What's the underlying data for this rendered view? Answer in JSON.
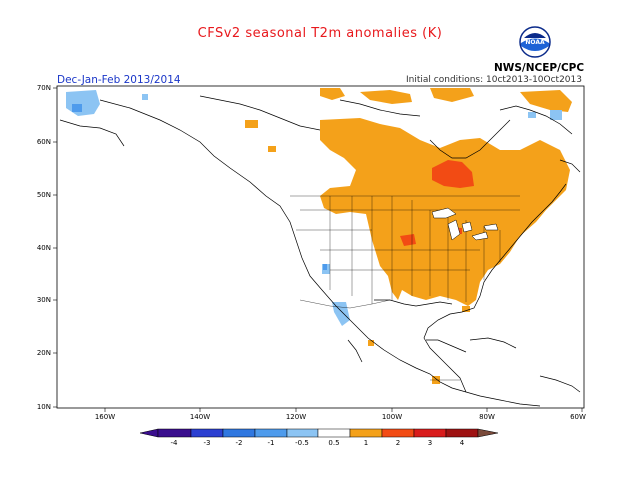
{
  "title": "CFSv2 seasonal T2m anomalies (K)",
  "season": "Dec-Jan-Feb 2013/2014",
  "initial_conditions": "Initial conditions: 10ct2013-10Oct2013",
  "agency": "NWS/NCEP/CPC",
  "logo_text": "NOAA",
  "lat_labels": [
    "70N",
    "60N",
    "50N",
    "40N",
    "30N",
    "20N",
    "10N"
  ],
  "lon_labels": [
    "160W",
    "140W",
    "120W",
    "100W",
    "80W",
    "60W"
  ],
  "colorbar": {
    "labels": [
      "-4",
      "-3",
      "-2",
      "-1",
      "-0.5",
      "0.5",
      "1",
      "2",
      "3",
      "4"
    ],
    "colors": [
      "#3a0e8e",
      "#2b3fd1",
      "#2f77e0",
      "#4e9bec",
      "#8cc4f3",
      "#ffffff",
      "#f4a11a",
      "#f24b14",
      "#d91c1c",
      "#9e1212",
      "#c89488",
      "#7a4a3a"
    ]
  },
  "colors": {
    "warm_light": "#f4a11a",
    "warm_strong": "#f24b14",
    "cool_light": "#8cc4f3",
    "cool_mid": "#4e9bec",
    "title": "#e8181c",
    "season": "#1a36c8"
  }
}
